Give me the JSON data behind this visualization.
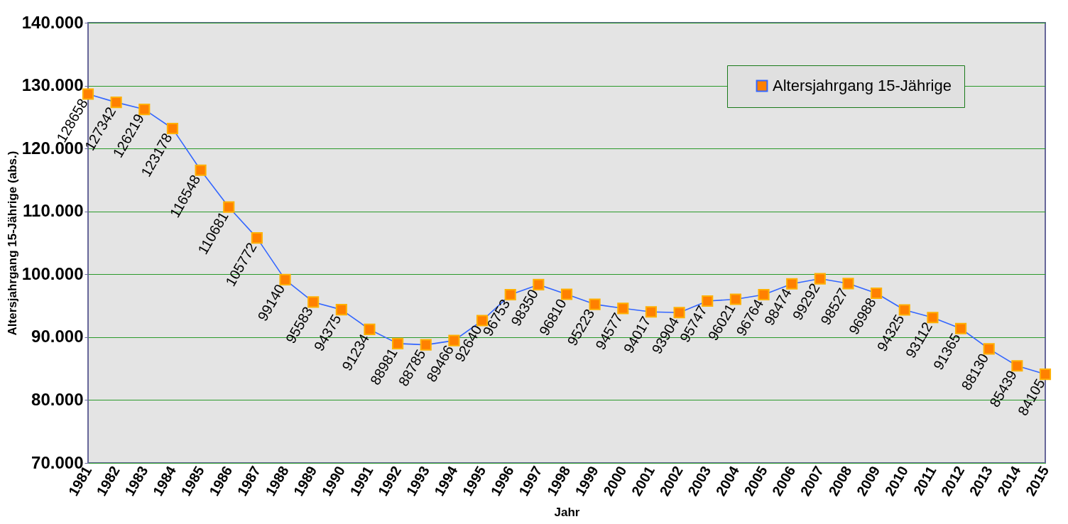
{
  "chart_data": {
    "type": "line",
    "xlabel": "Jahr",
    "ylabel": "Altersjahrgang 15-Jährige (abs.)",
    "categories": [
      "1981",
      "1982",
      "1983",
      "1984",
      "1985",
      "1986",
      "1987",
      "1988",
      "1989",
      "1990",
      "1991",
      "1992",
      "1993",
      "1994",
      "1995",
      "1996",
      "1997",
      "1998",
      "1999",
      "2000",
      "2001",
      "2002",
      "2003",
      "2004",
      "2005",
      "2006",
      "2007",
      "2008",
      "2009",
      "2010",
      "2011",
      "2012",
      "2013",
      "2014",
      "2015"
    ],
    "series": [
      {
        "name": "Altersjahrgang 15-Jährige",
        "color": "#3366ff",
        "values": [
          128658,
          127342,
          126219,
          123178,
          116548,
          110681,
          105772,
          99140,
          95583,
          94375,
          91234,
          88981,
          88785,
          89466,
          92640,
          96753,
          98350,
          96810,
          95223,
          94577,
          94017,
          93904,
          95747,
          96021,
          96764,
          98474,
          99292,
          98527,
          96988,
          94325,
          93112,
          91365,
          88130,
          85439,
          84105
        ]
      }
    ],
    "ylim": [
      70000,
      140000
    ],
    "yticks": [
      {
        "value": 70000,
        "label": "70.000"
      },
      {
        "value": 80000,
        "label": "80.000"
      },
      {
        "value": 90000,
        "label": "90.000"
      },
      {
        "value": 100000,
        "label": "100.000"
      },
      {
        "value": 110000,
        "label": "110.000"
      },
      {
        "value": 120000,
        "label": "120.000"
      },
      {
        "value": 130000,
        "label": "130.000"
      },
      {
        "value": 140000,
        "label": "140.000"
      }
    ],
    "grid": "y",
    "legend": "top right",
    "marker": "square",
    "line_style": "solid",
    "data_labels": true
  }
}
